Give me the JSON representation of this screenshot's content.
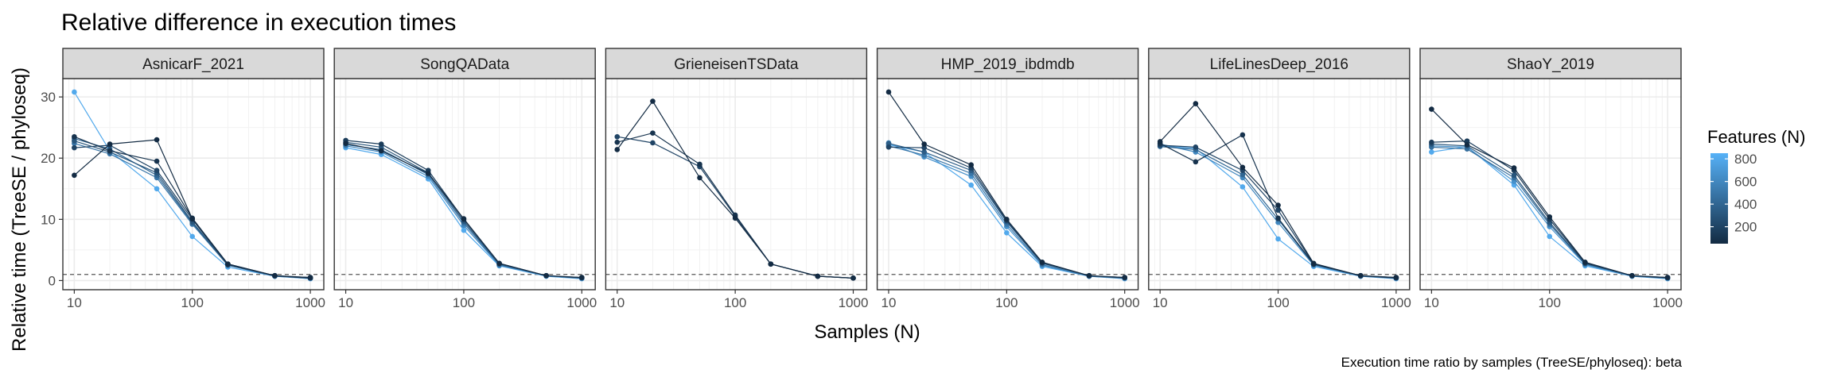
{
  "chart_data": {
    "type": "line",
    "title": "Relative difference in execution times",
    "xlabel": "Samples (N)",
    "ylabel": "Relative time (TreeSE / phyloseq)",
    "caption": "Execution time ratio by samples (TreeSE/phyloseq):  beta",
    "x_scale": "log10",
    "xlim": [
      8,
      1300
    ],
    "ylim": [
      -1.5,
      33
    ],
    "x_ticks": [
      10,
      100,
      1000
    ],
    "y_ticks": [
      0,
      10,
      20,
      30
    ],
    "reference_line_y": 1,
    "grid": true,
    "x": [
      10,
      20,
      50,
      100,
      200,
      500,
      1000
    ],
    "legend": {
      "title": "Features (N)",
      "placement": "right",
      "ticks": [
        200,
        400,
        600,
        800
      ],
      "range": [
        50,
        850
      ],
      "colors": {
        "low": "#132B43",
        "high": "#56B1F7"
      }
    },
    "facets": [
      {
        "name": "AsnicarF_2021",
        "series": [
          {
            "features": 50,
            "values": [
              17.2,
              22.3,
              23.0,
              10.1,
              2.7,
              0.8,
              0.5
            ]
          },
          {
            "features": 100,
            "values": [
              23.5,
              21.2,
              19.5,
              10.2,
              2.7,
              0.8,
              0.4
            ]
          },
          {
            "features": 200,
            "values": [
              21.7,
              22.1,
              18.0,
              10.0,
              2.6,
              0.8,
              0.4
            ]
          },
          {
            "features": 300,
            "values": [
              22.8,
              21.0,
              17.6,
              9.6,
              2.6,
              0.8,
              0.5
            ]
          },
          {
            "features": 400,
            "values": [
              23.2,
              21.5,
              17.2,
              9.4,
              2.5,
              0.8,
              0.4
            ]
          },
          {
            "features": 500,
            "values": [
              22.4,
              20.7,
              16.8,
              9.2,
              2.5,
              0.7,
              0.4
            ]
          },
          {
            "features": 800,
            "values": [
              30.8,
              21.2,
              15.0,
              7.2,
              2.2,
              0.7,
              0.3
            ]
          }
        ]
      },
      {
        "name": "SongQAData",
        "series": [
          {
            "features": 50,
            "values": [
              22.4,
              21.2,
              17.5,
              10.1,
              2.8,
              0.8,
              0.5
            ]
          },
          {
            "features": 150,
            "values": [
              22.9,
              22.3,
              18.0,
              10.0,
              2.8,
              0.8,
              0.5
            ]
          },
          {
            "features": 300,
            "values": [
              22.6,
              21.8,
              17.6,
              9.7,
              2.7,
              0.8,
              0.4
            ]
          },
          {
            "features": 450,
            "values": [
              22.2,
              21.4,
              17.3,
              9.4,
              2.6,
              0.8,
              0.4
            ]
          },
          {
            "features": 600,
            "values": [
              22.0,
              21.0,
              17.0,
              9.0,
              2.5,
              0.8,
              0.4
            ]
          },
          {
            "features": 800,
            "values": [
              21.7,
              20.6,
              16.6,
              8.2,
              2.4,
              0.7,
              0.3
            ]
          }
        ]
      },
      {
        "name": "GrieneisenTSData",
        "series": [
          {
            "features": 50,
            "values": [
              21.4,
              29.3,
              16.8,
              10.2,
              2.7,
              0.7,
              0.4
            ]
          },
          {
            "features": 100,
            "values": [
              22.6,
              24.1,
              19.0,
              10.7,
              2.7,
              0.7,
              0.4
            ]
          },
          {
            "features": 200,
            "values": [
              23.5,
              22.5,
              18.6,
              10.5,
              2.7,
              0.7,
              0.4
            ]
          }
        ]
      },
      {
        "name": "HMP_2019_ibdmdb",
        "series": [
          {
            "features": 50,
            "values": [
              30.8,
              22.3,
              18.9,
              10.0,
              3.0,
              0.8,
              0.5
            ]
          },
          {
            "features": 200,
            "values": [
              21.8,
              21.7,
              18.4,
              9.8,
              2.9,
              0.8,
              0.5
            ]
          },
          {
            "features": 350,
            "values": [
              22.4,
              21.0,
              18.0,
              9.6,
              2.8,
              0.8,
              0.4
            ]
          },
          {
            "features": 500,
            "values": [
              22.0,
              20.5,
              17.5,
              9.2,
              2.6,
              0.7,
              0.4
            ]
          },
          {
            "features": 650,
            "values": [
              22.5,
              20.2,
              17.0,
              8.8,
              2.5,
              0.7,
              0.4
            ]
          },
          {
            "features": 800,
            "values": [
              22.2,
              21.0,
              15.6,
              7.8,
              2.3,
              0.7,
              0.3
            ]
          }
        ]
      },
      {
        "name": "LifeLinesDeep_2016",
        "series": [
          {
            "features": 50,
            "values": [
              22.7,
              28.9,
              18.5,
              12.3,
              2.8,
              0.8,
              0.5
            ]
          },
          {
            "features": 100,
            "values": [
              22.4,
              19.4,
              23.8,
              10.2,
              2.7,
              0.8,
              0.5
            ]
          },
          {
            "features": 200,
            "values": [
              22.1,
              21.8,
              18.0,
              11.5,
              2.7,
              0.8,
              0.4
            ]
          },
          {
            "features": 400,
            "values": [
              21.9,
              21.4,
              17.3,
              10.0,
              2.6,
              0.8,
              0.4
            ]
          },
          {
            "features": 600,
            "values": [
              22.3,
              21.0,
              16.8,
              9.5,
              2.5,
              0.7,
              0.4
            ]
          },
          {
            "features": 800,
            "values": [
              22.0,
              21.6,
              15.3,
              6.8,
              2.3,
              0.7,
              0.3
            ]
          }
        ]
      },
      {
        "name": "ShaoY_2019",
        "series": [
          {
            "features": 50,
            "values": [
              28.0,
              22.2,
              18.4,
              10.4,
              3.0,
              0.8,
              0.5
            ]
          },
          {
            "features": 150,
            "values": [
              22.6,
              22.8,
              18.0,
              10.0,
              2.9,
              0.8,
              0.5
            ]
          },
          {
            "features": 300,
            "values": [
              22.3,
              22.0,
              17.2,
              9.5,
              2.8,
              0.8,
              0.4
            ]
          },
          {
            "features": 450,
            "values": [
              21.8,
              21.5,
              16.8,
              9.2,
              2.7,
              0.8,
              0.4
            ]
          },
          {
            "features": 650,
            "values": [
              22.0,
              21.8,
              16.2,
              8.8,
              2.6,
              0.7,
              0.4
            ]
          },
          {
            "features": 800,
            "values": [
              21.0,
              21.9,
              15.6,
              7.2,
              2.4,
              0.7,
              0.3
            ]
          }
        ]
      }
    ]
  }
}
